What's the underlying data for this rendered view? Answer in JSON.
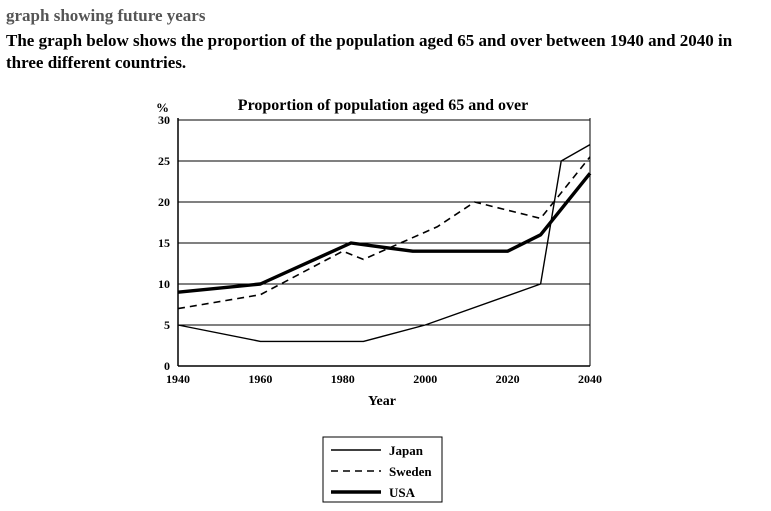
{
  "page": {
    "heading": "graph showing future years",
    "description": "The graph below shows the proportion of the population aged 65 and over between 1940 and 2040 in three different countries."
  },
  "chart_data": {
    "type": "line",
    "title": "Proportion of population aged 65 and over",
    "xlabel": "Year",
    "ylabel": "%",
    "xlim": [
      1940,
      2040
    ],
    "ylim": [
      0,
      30
    ],
    "x_ticks": [
      "1940",
      "1960",
      "1980",
      "2000",
      "2020",
      "2040"
    ],
    "y_ticks": [
      "0",
      "5",
      "10",
      "15",
      "20",
      "25",
      "30"
    ],
    "grid": "horizontal",
    "legend_position": "bottom-center",
    "series": [
      {
        "name": "Japan",
        "style": "thin-solid",
        "points": [
          [
            1940,
            5
          ],
          [
            1960,
            3
          ],
          [
            1985,
            3
          ],
          [
            2000,
            5
          ],
          [
            2028,
            10
          ],
          [
            2033,
            25
          ],
          [
            2040,
            27
          ]
        ]
      },
      {
        "name": "Sweden",
        "style": "dashed",
        "points": [
          [
            1940,
            7
          ],
          [
            1960,
            8.7
          ],
          [
            1980,
            14
          ],
          [
            1985,
            13
          ],
          [
            2003,
            17
          ],
          [
            2012,
            20
          ],
          [
            2028,
            18
          ],
          [
            2040,
            25.5
          ]
        ]
      },
      {
        "name": "USA",
        "style": "thick-solid",
        "points": [
          [
            1940,
            9
          ],
          [
            1960,
            10
          ],
          [
            1982,
            15
          ],
          [
            1997,
            14
          ],
          [
            2020,
            14
          ],
          [
            2028,
            16
          ],
          [
            2040,
            23.5
          ]
        ]
      }
    ]
  }
}
